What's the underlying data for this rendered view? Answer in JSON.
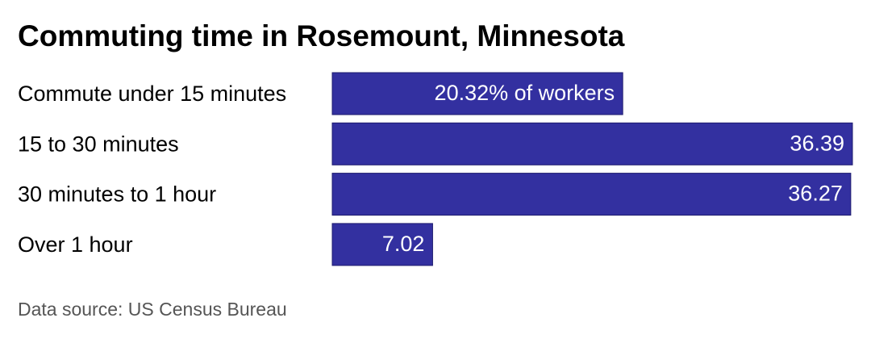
{
  "chart_data": {
    "type": "bar",
    "orientation": "horizontal",
    "title": "Commuting time in Rosemount, Minnesota",
    "categories": [
      "Commute under 15 minutes",
      "15 to 30 minutes",
      "30 minutes to 1 hour",
      "Over 1 hour"
    ],
    "values": [
      20.32,
      36.39,
      36.27,
      7.02
    ],
    "value_labels": [
      "20.32% of workers",
      "36.39",
      "36.27",
      "7.02"
    ],
    "color": "#3330a0",
    "source": "Data source: US Census Bureau"
  }
}
